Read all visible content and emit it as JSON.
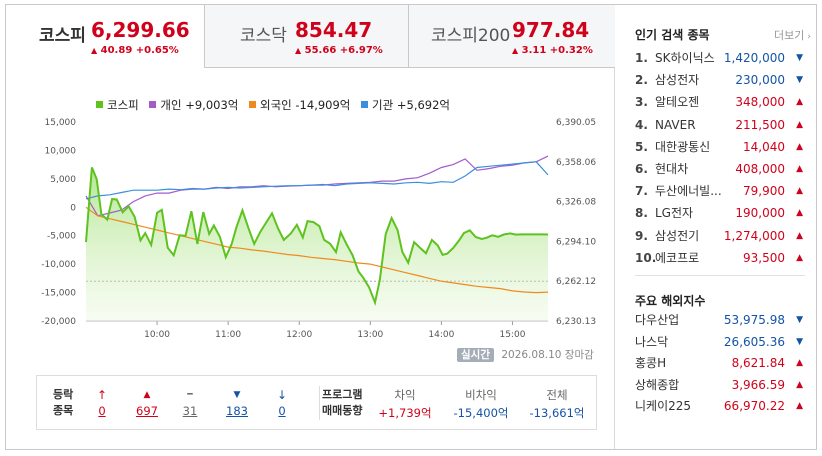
{
  "tabs": [
    {
      "name": "코스피",
      "value": "6,299.66",
      "change": "40.89 +0.65%",
      "arrow": "▲",
      "active": true
    },
    {
      "name": "코스닥",
      "value": "854.47",
      "change": "55.66 +6.97%",
      "arrow": "▲",
      "active": false
    },
    {
      "name": "코스피200",
      "value": "977.84",
      "change": "3.11 +0.32%",
      "arrow": "▲",
      "active": false
    }
  ],
  "legend": {
    "kospi": "코스피",
    "individual": "개인 +9,003억",
    "foreign": "외국인 -14,909억",
    "institution": "기관 +5,692억"
  },
  "colors": {
    "kospi": "#5ec21f",
    "individual": "#a25bcb",
    "foreign": "#f08a1c",
    "institution": "#3b8fdc",
    "up": "#d0021b",
    "down": "#1453a8"
  },
  "chart_data": {
    "type": "line",
    "x_ticks": [
      "10:00",
      "11:00",
      "12:00",
      "13:00",
      "14:00",
      "15:00"
    ],
    "y_left_ticks": [
      "15,000",
      "10,000",
      "5,000",
      "0",
      "-5,000",
      "-10,000",
      "-15,000",
      "-20,000"
    ],
    "y_left_range": [
      -20000,
      15000
    ],
    "y_right_ticks": [
      "6,390.05",
      "6,358.06",
      "6,326.08",
      "6,294.10",
      "6,262.12",
      "6,230.13"
    ],
    "y_right_range": [
      6230.13,
      6390.05
    ],
    "reference_line": 6262.12,
    "time_range": [
      "09:00",
      "15:30"
    ],
    "series": [
      {
        "name": "코스피",
        "axis": "right",
        "t": [
          "09:00",
          "09:05",
          "09:09",
          "09:13",
          "09:18",
          "09:22",
          "09:26",
          "09:31",
          "09:36",
          "09:41",
          "09:46",
          "09:50",
          "09:55",
          "10:00",
          "10:04",
          "10:09",
          "10:14",
          "10:19",
          "10:24",
          "10:29",
          "10:34",
          "10:39",
          "10:44",
          "10:48",
          "10:53",
          "10:58",
          "11:03",
          "11:07",
          "11:12",
          "11:17",
          "11:22",
          "11:27",
          "11:32",
          "11:37",
          "11:42",
          "11:47",
          "11:53",
          "11:58",
          "12:03",
          "12:07",
          "12:12",
          "12:17",
          "12:21",
          "12:26",
          "12:31",
          "12:35",
          "12:40",
          "12:45",
          "12:50",
          "12:54",
          "12:59",
          "13:04",
          "13:08",
          "13:13",
          "13:18",
          "13:23",
          "13:27",
          "13:32",
          "13:37",
          "13:42",
          "13:47",
          "13:52",
          "13:57",
          "14:01",
          "14:05",
          "14:10",
          "14:15",
          "14:19",
          "14:24",
          "14:29",
          "14:34",
          "14:38",
          "14:43",
          "14:48",
          "14:53",
          "14:58",
          "15:03",
          "15:08",
          "15:13",
          "15:18",
          "15:23",
          "15:27",
          "15:30"
        ],
        "v": [
          6293.5,
          6353.6,
          6344.0,
          6315.9,
          6311.6,
          6328.2,
          6327.7,
          6317.5,
          6322.3,
          6313.9,
          6294.9,
          6300.8,
          6291.3,
          6317.2,
          6319.4,
          6289.0,
          6282.9,
          6299.0,
          6298.6,
          6318.4,
          6292.0,
          6317.7,
          6300.1,
          6306.9,
          6297.7,
          6281.5,
          6292.1,
          6305.4,
          6319.1,
          6305.1,
          6292.1,
          6301.5,
          6309.2,
          6316.7,
          6304.8,
          6295.2,
          6300.6,
          6307.4,
          6297.3,
          6310.4,
          6309.6,
          6306.3,
          6295.4,
          6292.3,
          6285.5,
          6301.4,
          6291.8,
          6283.1,
          6269.9,
          6264.9,
          6257.1,
          6245.0,
          6263.0,
          6300.0,
          6312.9,
          6303.1,
          6285.7,
          6277.0,
          6293.5,
          6288.9,
          6284.5,
          6295.3,
          6290.8,
          6283.3,
          6284.3,
          6288.8,
          6295.0,
          6300.8,
          6302.9,
          6297.6,
          6296.0,
          6297.0,
          6299.0,
          6297.8,
          6299.7,
          6300.5,
          6299.6,
          6299.7,
          6299.7,
          6299.7,
          6299.7,
          6299.7,
          6299.66
        ]
      },
      {
        "name": "개인",
        "axis": "left",
        "t": [
          "09:00",
          "09:10",
          "09:20",
          "09:30",
          "09:40",
          "09:50",
          "10:00",
          "10:10",
          "10:20",
          "10:30",
          "10:40",
          "10:50",
          "11:00",
          "11:10",
          "11:20",
          "11:30",
          "11:40",
          "11:50",
          "12:00",
          "12:10",
          "12:20",
          "12:30",
          "12:40",
          "12:50",
          "13:00",
          "13:10",
          "13:20",
          "13:30",
          "13:40",
          "13:50",
          "14:00",
          "14:10",
          "14:20",
          "14:30",
          "14:40",
          "14:50",
          "15:00",
          "15:10",
          "15:20",
          "15:30"
        ],
        "v": [
          2000,
          -1500,
          -1000,
          -500,
          1000,
          2000,
          2500,
          2500,
          3000,
          3200,
          3200,
          3500,
          3300,
          3600,
          3600,
          3800,
          3600,
          3700,
          3800,
          3900,
          3900,
          4100,
          4200,
          4300,
          4400,
          4600,
          4600,
          5000,
          5200,
          6000,
          7000,
          7500,
          8500,
          6500,
          6800,
          7200,
          7400,
          7800,
          8000,
          9003
        ]
      },
      {
        "name": "외국인",
        "axis": "left",
        "t": [
          "09:00",
          "09:10",
          "09:20",
          "09:30",
          "09:40",
          "09:50",
          "10:00",
          "10:10",
          "10:20",
          "10:30",
          "10:40",
          "10:50",
          "11:00",
          "11:10",
          "11:20",
          "11:30",
          "11:40",
          "11:50",
          "12:00",
          "12:10",
          "12:20",
          "12:30",
          "12:40",
          "12:50",
          "13:00",
          "13:10",
          "13:20",
          "13:30",
          "13:40",
          "13:50",
          "14:00",
          "14:10",
          "14:20",
          "14:30",
          "14:40",
          "14:50",
          "15:00",
          "15:10",
          "15:20",
          "15:30"
        ],
        "v": [
          0,
          -1500,
          -2000,
          -2500,
          -3000,
          -3500,
          -4000,
          -4500,
          -5000,
          -5500,
          -6000,
          -6500,
          -7000,
          -7200,
          -7500,
          -7700,
          -8000,
          -8300,
          -8500,
          -8800,
          -9000,
          -9200,
          -9500,
          -9800,
          -10000,
          -10500,
          -11000,
          -11500,
          -12000,
          -12500,
          -13000,
          -13300,
          -13600,
          -13900,
          -14100,
          -14300,
          -14700,
          -14900,
          -15000,
          -14909
        ]
      },
      {
        "name": "기관",
        "axis": "left",
        "t": [
          "09:00",
          "09:10",
          "09:20",
          "09:30",
          "09:40",
          "09:50",
          "10:00",
          "10:10",
          "10:20",
          "10:30",
          "10:40",
          "10:50",
          "11:00",
          "11:10",
          "11:20",
          "11:30",
          "11:40",
          "11:50",
          "12:00",
          "12:10",
          "12:20",
          "12:30",
          "12:40",
          "12:50",
          "13:00",
          "13:10",
          "13:20",
          "13:30",
          "13:40",
          "13:50",
          "14:00",
          "14:10",
          "14:20",
          "14:30",
          "14:40",
          "14:50",
          "15:00",
          "15:10",
          "15:20",
          "15:30"
        ],
        "v": [
          1500,
          2000,
          2200,
          2600,
          3000,
          3000,
          3000,
          3200,
          3100,
          3300,
          3200,
          3400,
          3500,
          3400,
          3500,
          3600,
          3700,
          3800,
          3800,
          3900,
          4000,
          3800,
          4100,
          4200,
          4300,
          4200,
          4100,
          4300,
          4400,
          4200,
          4500,
          4400,
          5500,
          7000,
          7200,
          7400,
          7600,
          7800,
          8000,
          5692
        ]
      }
    ]
  },
  "timestamp": {
    "label": "실시간",
    "date": "2026.08.10",
    "status": "장마감"
  },
  "breadth": {
    "label_line1": "등락",
    "label_line2": "종목",
    "items": [
      {
        "name": "upper-limit",
        "arrow": "↑",
        "count": "0",
        "color": "red"
      },
      {
        "name": "rise",
        "arrow": "▲",
        "count": "697",
        "color": "red"
      },
      {
        "name": "flat",
        "arrow": "━",
        "count": "31",
        "color": "gray"
      },
      {
        "name": "fall",
        "arrow": "▼",
        "count": "183",
        "color": "blue"
      },
      {
        "name": "lower-limit",
        "arrow": "↓",
        "count": "0",
        "color": "blue"
      }
    ]
  },
  "program": {
    "label_line1": "프로그램",
    "label_line2": "매매동향",
    "items": [
      {
        "header": "차익",
        "value": "+1,739억",
        "color": "red"
      },
      {
        "header": "비차익",
        "value": "-15,400억",
        "color": "blue"
      },
      {
        "header": "전체",
        "value": "-13,661억",
        "color": "blue"
      }
    ]
  },
  "popular": {
    "title": "인기 검색 종목",
    "more": "더보기",
    "items": [
      {
        "rank": "1.",
        "name": "SK하이닉스",
        "price": "1,420,000",
        "dir": "down"
      },
      {
        "rank": "2.",
        "name": "삼성전자",
        "price": "230,000",
        "dir": "down"
      },
      {
        "rank": "3.",
        "name": "알테오젠",
        "price": "348,000",
        "dir": "up"
      },
      {
        "rank": "4.",
        "name": "NAVER",
        "price": "211,500",
        "dir": "up"
      },
      {
        "rank": "5.",
        "name": "대한광통신",
        "price": "14,040",
        "dir": "up"
      },
      {
        "rank": "6.",
        "name": "현대차",
        "price": "408,000",
        "dir": "up"
      },
      {
        "rank": "7.",
        "name": "두산에너빌...",
        "price": "79,900",
        "dir": "up"
      },
      {
        "rank": "8.",
        "name": "LG전자",
        "price": "190,000",
        "dir": "up"
      },
      {
        "rank": "9.",
        "name": "삼성전기",
        "price": "1,274,000",
        "dir": "up"
      },
      {
        "rank": "10.",
        "name": "에코프로",
        "price": "93,500",
        "dir": "up"
      }
    ]
  },
  "overseas": {
    "title": "주요 해외지수",
    "items": [
      {
        "name": "다우산업",
        "value": "53,975.98",
        "dir": "down"
      },
      {
        "name": "나스닥",
        "value": "26,605.36",
        "dir": "down"
      },
      {
        "name": "홍콩H",
        "value": "8,621.84",
        "dir": "up"
      },
      {
        "name": "상해종합",
        "value": "3,966.59",
        "dir": "up"
      },
      {
        "name": "니케이225",
        "value": "66,970.22",
        "dir": "up"
      }
    ]
  }
}
